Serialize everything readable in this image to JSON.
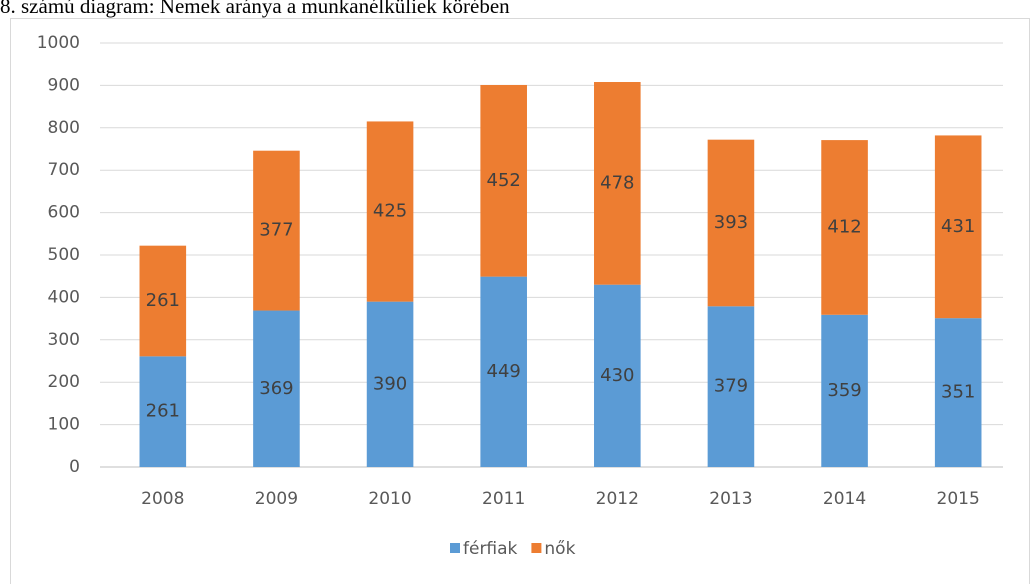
{
  "chart_data": {
    "type": "stacked_bar",
    "title": "8. számú diagram: Nemek aránya a munkanélküliek körében",
    "categories": [
      "2008",
      "2009",
      "2010",
      "2011",
      "2012",
      "2013",
      "2014",
      "2015"
    ],
    "series": [
      {
        "name": "férfiak",
        "color": "#5b9bd5",
        "values": [
          261,
          369,
          390,
          449,
          430,
          379,
          359,
          351
        ]
      },
      {
        "name": "nők",
        "color": "#ed7d31",
        "values": [
          261,
          377,
          425,
          452,
          478,
          393,
          412,
          431
        ]
      }
    ],
    "ylim": [
      0,
      1000
    ],
    "yticks": [
      0,
      100,
      200,
      300,
      400,
      500,
      600,
      700,
      800,
      900,
      1000
    ],
    "grid": true,
    "legend": "bottom"
  }
}
